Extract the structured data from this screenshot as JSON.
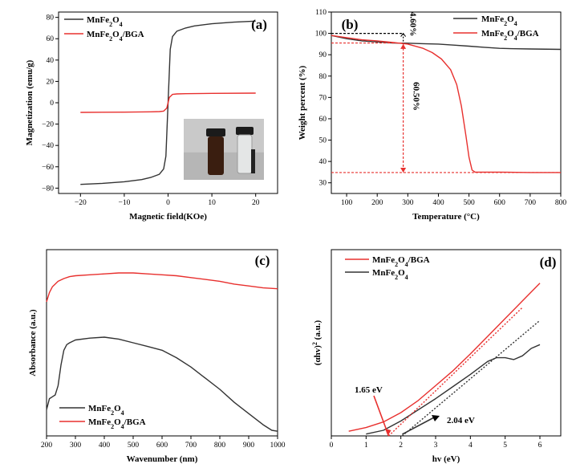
{
  "colors": {
    "black_series": "#333333",
    "red_series": "#e8302e",
    "axis": "#000000",
    "dotted": "#e8302e"
  },
  "chart_data": [
    {
      "id": "a",
      "type": "line",
      "panel_label": "(a)",
      "xlabel": "Magnetic field(KOe)",
      "ylabel": "Magnetization (emu/g)",
      "xlim": [
        -25,
        25
      ],
      "ylim": [
        -85,
        85
      ],
      "xticks": [
        -20,
        -10,
        0,
        10,
        20
      ],
      "yticks": [
        -80,
        -60,
        -40,
        -20,
        0,
        20,
        40,
        60,
        80
      ],
      "legend": {
        "position": "top-left",
        "entries": [
          {
            "base": "MnFe",
            "s1": "2",
            "mid": "O",
            "s2": "4",
            "tail": ""
          },
          {
            "base": "MnFe",
            "s1": "2",
            "mid": "O",
            "s2": "4",
            "tail": "/BGA"
          }
        ]
      },
      "series": [
        {
          "color_key": "black_series",
          "x": [
            -20,
            -15,
            -10,
            -6,
            -4,
            -2,
            -1,
            -0.5,
            0,
            0.5,
            1,
            2,
            4,
            6,
            10,
            15,
            20
          ],
          "y": [
            -76.5,
            -75.5,
            -74,
            -72,
            -70,
            -67,
            -62,
            -50,
            0,
            50,
            62,
            67,
            70,
            72,
            74,
            75.5,
            76.5
          ]
        },
        {
          "color_key": "red_series",
          "x": [
            -20,
            -10,
            -4,
            -2,
            -1,
            -0.3,
            0,
            0.3,
            1,
            2,
            4,
            10,
            20
          ],
          "y": [
            -9,
            -8.8,
            -8.5,
            -8.3,
            -7.8,
            -5,
            0,
            5,
            7.8,
            8.3,
            8.5,
            8.8,
            9
          ]
        }
      ],
      "inset": "photo of two vials"
    },
    {
      "id": "b",
      "type": "line",
      "panel_label": "(b)",
      "xlabel": "Temperature (°C)",
      "ylabel": "Weight percent (%)",
      "xlim": [
        50,
        800
      ],
      "ylim": [
        25,
        110
      ],
      "xticks": [
        100,
        200,
        300,
        400,
        500,
        600,
        700,
        800
      ],
      "yticks": [
        30,
        40,
        50,
        60,
        70,
        80,
        90,
        100,
        110
      ],
      "legend": {
        "position": "top-right",
        "entries": [
          {
            "base": "MnFe",
            "s1": "2",
            "mid": "O",
            "s2": "4",
            "tail": ""
          },
          {
            "base": "MnFe",
            "s1": "2",
            "mid": "O",
            "s2": "4",
            "tail": "/BGA"
          }
        ]
      },
      "series": [
        {
          "color_key": "black_series",
          "x": [
            50,
            100,
            150,
            200,
            250,
            300,
            350,
            400,
            450,
            500,
            550,
            600,
            650,
            700,
            800
          ],
          "y": [
            99,
            97.5,
            96.5,
            96,
            95.5,
            95.4,
            95.2,
            95,
            94.5,
            94,
            93.5,
            93,
            92.8,
            92.7,
            92.5
          ]
        },
        {
          "color_key": "red_series",
          "x": [
            50,
            100,
            150,
            200,
            250,
            300,
            350,
            380,
            410,
            440,
            460,
            475,
            490,
            500,
            510,
            520,
            600,
            700,
            800
          ],
          "y": [
            99,
            98,
            97,
            96.5,
            95.8,
            95,
            93,
            91,
            88,
            83,
            76,
            66,
            52,
            42,
            36,
            35,
            35,
            34.8,
            34.8
          ]
        }
      ],
      "annotations": [
        {
          "text": "4.60%",
          "color_key": "black_series"
        },
        {
          "text": "60.50%",
          "color_key": "red_series"
        }
      ]
    },
    {
      "id": "c",
      "type": "line",
      "panel_label": "(c)",
      "xlabel": "Wavenumber (nm)",
      "ylabel": "Absorbance (a.u.)",
      "xlim": [
        200,
        1000
      ],
      "ylim": [
        0,
        100
      ],
      "xticks": [
        200,
        300,
        400,
        500,
        600,
        700,
        800,
        900,
        1000
      ],
      "yticks": [],
      "legend": {
        "position": "bottom-left",
        "entries": [
          {
            "base": "MnFe",
            "s1": "2",
            "mid": "O",
            "s2": "4",
            "tail": ""
          },
          {
            "base": "MnFe",
            "s1": "2",
            "mid": "O",
            "s2": "4",
            "tail": "/BGA"
          }
        ]
      },
      "series": [
        {
          "color_key": "black_series",
          "x": [
            200,
            210,
            220,
            230,
            240,
            250,
            260,
            270,
            280,
            300,
            350,
            400,
            450,
            500,
            550,
            600,
            650,
            700,
            750,
            800,
            850,
            900,
            950,
            980,
            1000
          ],
          "y": [
            14,
            20,
            21,
            22,
            27,
            38,
            46,
            49,
            50,
            51.5,
            52.5,
            53,
            52,
            50,
            48,
            46,
            42,
            37,
            31,
            25,
            18,
            12,
            6,
            3,
            2.5
          ]
        },
        {
          "color_key": "red_series",
          "x": [
            200,
            210,
            220,
            240,
            260,
            280,
            300,
            350,
            400,
            450,
            500,
            550,
            600,
            650,
            700,
            750,
            800,
            850,
            900,
            950,
            1000
          ],
          "y": [
            72,
            77,
            80,
            83,
            84.5,
            85.5,
            86,
            86.5,
            87,
            87.5,
            87.5,
            87,
            86.5,
            86,
            85,
            84,
            83,
            81.5,
            80.5,
            79.5,
            79
          ]
        }
      ]
    },
    {
      "id": "d",
      "type": "line",
      "panel_label": "(d)",
      "xlabel": "hv (eV)",
      "ylabel": "(αhv)",
      "ylabel_sup": "2",
      "ylabel_tail": " (a.u.)",
      "xlim": [
        0,
        6.6
      ],
      "ylim": [
        0,
        100
      ],
      "xticks": [
        0,
        1,
        2,
        3,
        4,
        5,
        6
      ],
      "yticks": [],
      "legend": {
        "position": "top-left",
        "entries": [
          {
            "base": "MnFe",
            "s1": "2",
            "mid": "O",
            "s2": "4",
            "tail": "/BGA"
          },
          {
            "base": "MnFe",
            "s1": "2",
            "mid": "O",
            "s2": "4",
            "tail": ""
          }
        ]
      },
      "series": [
        {
          "color_key": "red_series",
          "x": [
            0.5,
            1.0,
            1.5,
            2.0,
            2.5,
            3.0,
            3.5,
            4.0,
            4.5,
            5.0,
            5.5,
            6.0
          ],
          "y": [
            2.5,
            4.5,
            7.5,
            12.5,
            19,
            27,
            35,
            44,
            53.5,
            63,
            72.5,
            82
          ]
        },
        {
          "color_key": "black_series",
          "x": [
            1.0,
            1.5,
            2.0,
            2.5,
            3.0,
            3.5,
            4.0,
            4.5,
            4.75,
            5.0,
            5.25,
            5.5,
            5.75,
            6.0
          ],
          "y": [
            1,
            3,
            8,
            14,
            20,
            26.5,
            33,
            40,
            42,
            42,
            41,
            43,
            47,
            49
          ]
        }
      ],
      "tangents": [
        {
          "color_key": "red_series",
          "x": [
            1.65,
            5.5
          ],
          "y": [
            0,
            69
          ]
        },
        {
          "color_key": "black_series",
          "x": [
            2.04,
            6.0
          ],
          "y": [
            0,
            62
          ]
        }
      ],
      "annotations": [
        {
          "text": "1.65 eV",
          "color_key": "red_series",
          "target_x": 1.65
        },
        {
          "text": "2.04 eV",
          "color_key": "black_series",
          "target_x": 2.04
        }
      ]
    }
  ]
}
